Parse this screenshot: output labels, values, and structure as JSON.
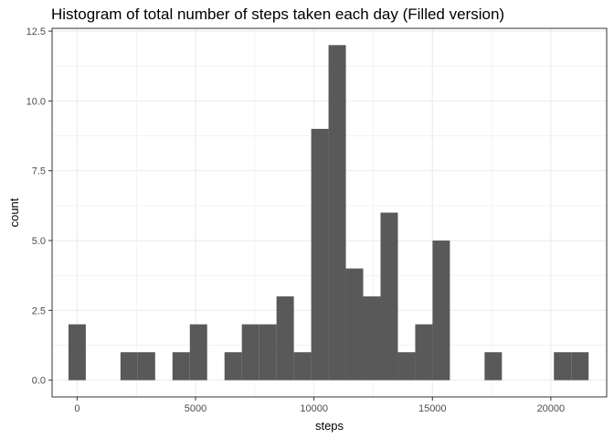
{
  "chart_data": {
    "type": "bar",
    "title": "Histogram of total number of steps taken each day (Filled version)",
    "xlabel": "steps",
    "ylabel": "count",
    "xlim": [
      -1058,
      22358
    ],
    "ylim": [
      -0.6,
      12.6
    ],
    "x_ticks": [
      0,
      5000,
      10000,
      15000,
      20000
    ],
    "x_tick_labels": [
      "0",
      "5000",
      "10000",
      "15000",
      "20000"
    ],
    "y_ticks": [
      0,
      2.5,
      5,
      7.5,
      10,
      12.5
    ],
    "y_tick_labels": [
      "0.0",
      "2.5",
      "5.0",
      "7.5",
      "10.0",
      "12.5"
    ],
    "bin_width": 732,
    "bin_starts": [
      -366,
      366,
      1098,
      1830,
      2562,
      3294,
      4026,
      4758,
      5490,
      6222,
      6954,
      7686,
      8418,
      9150,
      9882,
      10614,
      11346,
      12078,
      12810,
      13542,
      14274,
      15006,
      15738,
      16470,
      17202,
      17934,
      18666,
      19398,
      20130,
      20862
    ],
    "values": [
      2,
      0,
      0,
      1,
      1,
      0,
      1,
      2,
      0,
      1,
      2,
      2,
      3,
      1,
      9,
      12,
      4,
      3,
      6,
      1,
      2,
      5,
      0,
      0,
      1,
      0,
      0,
      0,
      1,
      1
    ],
    "bar_color": "#595959",
    "grid": true,
    "panel_border_color": "#333333",
    "grid_color": "#ebebeb"
  }
}
